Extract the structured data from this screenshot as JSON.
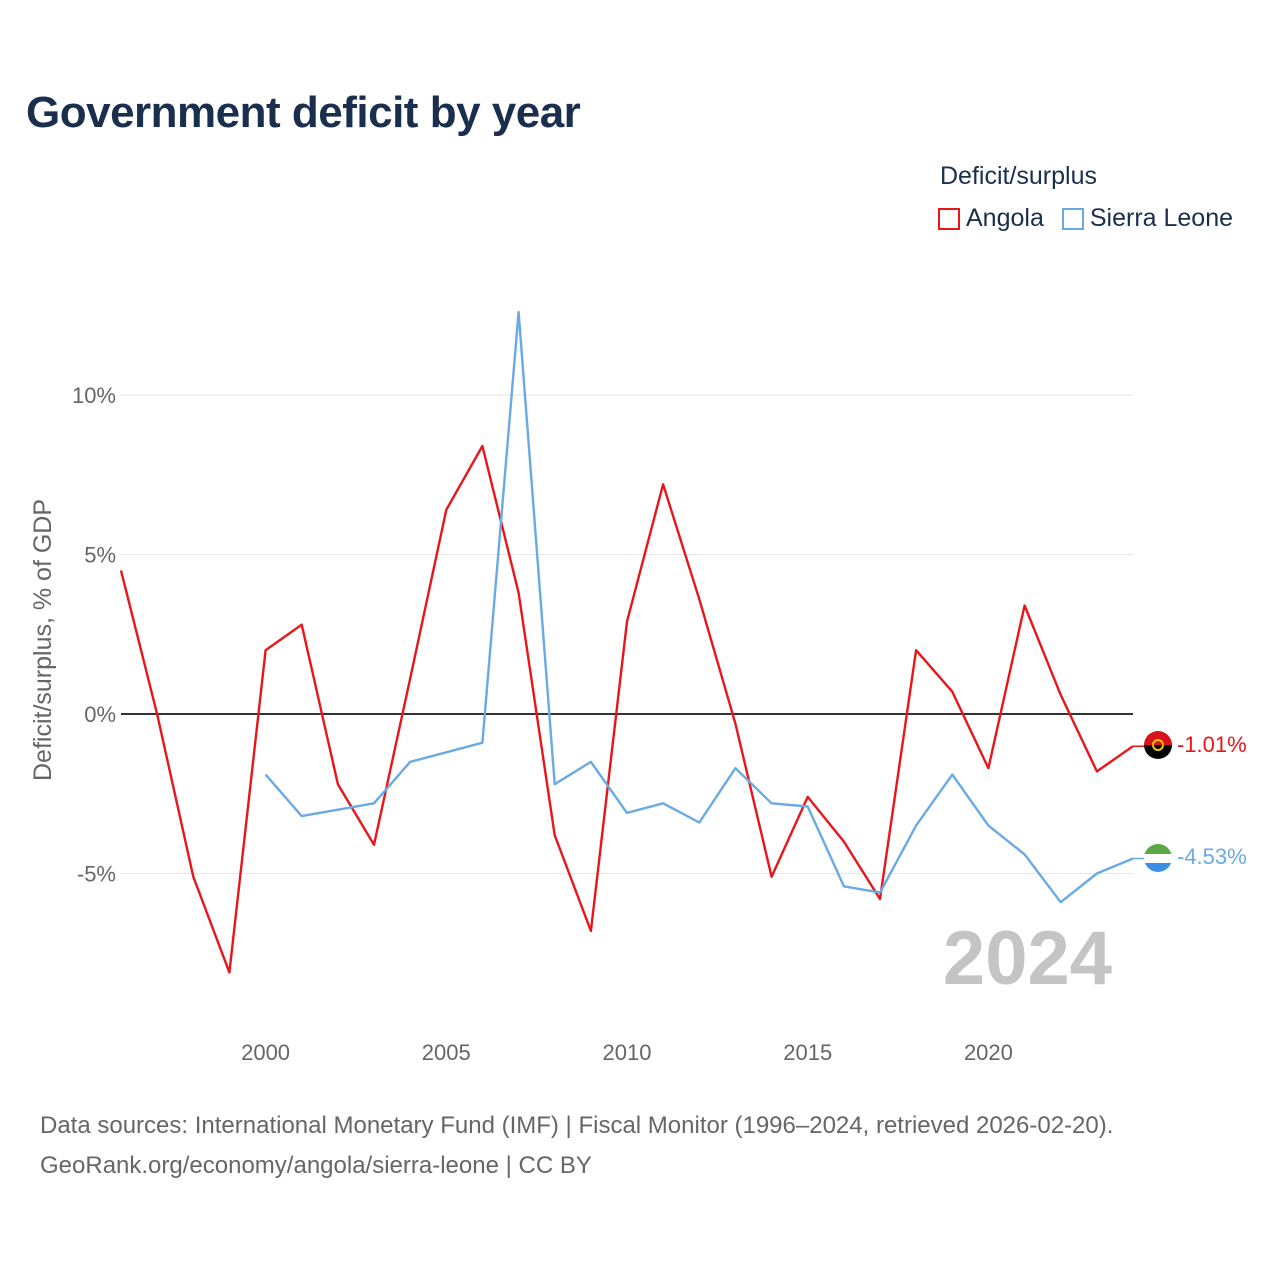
{
  "title": "Government deficit by year",
  "legend": {
    "title": "Deficit/surplus",
    "items": [
      {
        "label": "Angola",
        "color": "#e8161b"
      },
      {
        "label": "Sierra Leone",
        "color": "#6aaae4"
      }
    ]
  },
  "footer": {
    "line1": "Data sources: International Monetary Fund (IMF) | Fiscal Monitor (1996–2024, retrieved 2026-02-20).",
    "line2": "GeoRank.org/economy/angola/sierra-leone | CC BY"
  },
  "chart_data": {
    "type": "line",
    "title": "Government deficit by year",
    "xlabel": "",
    "ylabel": "Deficit/surplus, % of GDP",
    "xlim": [
      1996,
      2024
    ],
    "ylim": [
      -9,
      13
    ],
    "x_ticks": [
      2000,
      2005,
      2010,
      2015,
      2020
    ],
    "y_ticks": [
      {
        "value": 10,
        "label": "10%"
      },
      {
        "value": 5,
        "label": "5%"
      },
      {
        "value": 0,
        "label": "0%"
      },
      {
        "value": -5,
        "label": "-5%"
      }
    ],
    "year_watermark": "2024",
    "series": [
      {
        "name": "Angola",
        "color": "#e8161b",
        "end_label": "-1.01%",
        "x": [
          1996,
          1997,
          1998,
          1999,
          2000,
          2001,
          2002,
          2003,
          2004,
          2005,
          2006,
          2007,
          2008,
          2009,
          2010,
          2011,
          2012,
          2013,
          2014,
          2015,
          2016,
          2017,
          2018,
          2019,
          2020,
          2021,
          2022,
          2023,
          2024
        ],
        "values": [
          4.5,
          0.0,
          -5.1,
          -8.1,
          2.0,
          2.8,
          -2.2,
          -4.1,
          1.1,
          6.4,
          8.4,
          3.8,
          -3.8,
          -6.8,
          2.9,
          7.2,
          3.6,
          -0.3,
          -5.1,
          -2.6,
          -4.0,
          -5.8,
          2.0,
          0.7,
          -1.7,
          3.4,
          0.6,
          -1.8,
          -1.01
        ]
      },
      {
        "name": "Sierra Leone",
        "color": "#6aaae4",
        "end_label": "-4.53%",
        "x": [
          2000,
          2001,
          2002,
          2003,
          2004,
          2005,
          2006,
          2007,
          2008,
          2009,
          2010,
          2011,
          2012,
          2013,
          2014,
          2015,
          2016,
          2017,
          2018,
          2019,
          2020,
          2021,
          2022,
          2023,
          2024
        ],
        "values": [
          -1.9,
          -3.2,
          -3.0,
          -2.8,
          -1.5,
          -1.2,
          -0.9,
          12.6,
          -2.2,
          -1.5,
          -3.1,
          -2.8,
          -3.4,
          -1.7,
          -2.8,
          -2.9,
          -5.4,
          -5.6,
          -3.5,
          -1.9,
          -3.5,
          -4.4,
          -5.9,
          -5.0,
          -4.53
        ]
      }
    ]
  }
}
